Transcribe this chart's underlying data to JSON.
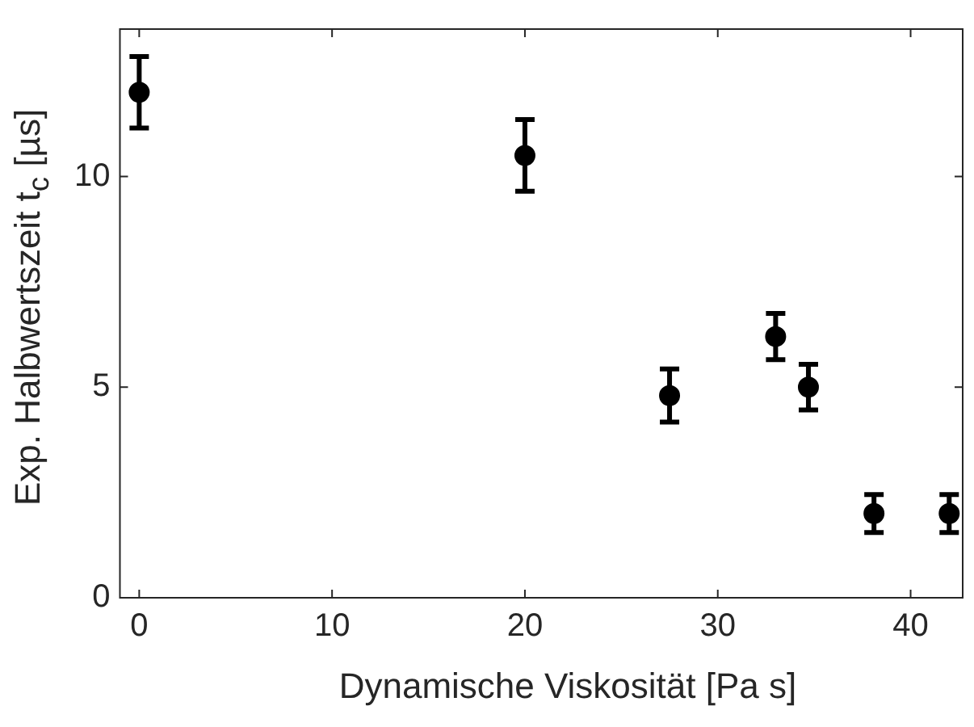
{
  "chart_data": {
    "type": "scatter",
    "xlabel": "Dynamische Viskosität [Pa s]",
    "ylabel": "Exp. Halbwertszeit t$_{c}$ [µs]",
    "x": [
      0,
      20,
      27.5,
      33,
      34.7,
      38.1,
      42
    ],
    "series": [
      {
        "color": "#000000",
        "values": [
          12,
          10.5,
          4.8,
          6.2,
          5.0,
          2.0,
          2.0
        ],
        "errors": [
          0.85,
          0.85,
          0.63,
          0.55,
          0.54,
          0.45,
          0.45
        ]
      }
    ],
    "xlim": [
      -1,
      42.7
    ],
    "xticks": [
      0,
      10,
      20,
      30,
      40
    ],
    "ylim": [
      0,
      13.5
    ],
    "yticks": [
      0,
      5,
      10
    ],
    "grid": false,
    "legend": false,
    "marker": "circle"
  }
}
